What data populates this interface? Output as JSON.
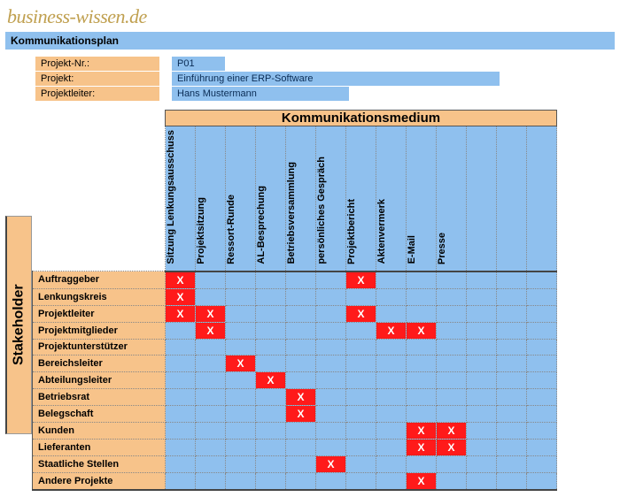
{
  "logo": "business-wissen.de",
  "title": "Kommunikationsplan",
  "meta": {
    "labels": {
      "projno": "Projekt-Nr.:",
      "proj": "Projekt:",
      "leader": "Projektleiter:"
    },
    "values": {
      "projno": "P01",
      "proj": "Einführung einer ERP-Software",
      "leader": "Hans Mustermann"
    },
    "widths": {
      "projno": 60,
      "proj": 370,
      "leader": 200
    }
  },
  "matrix": {
    "top_header": "Kommunikationsmedium",
    "side_header": "Stakeholder",
    "columns": [
      "Sitzung Lenkungsausschuss",
      "Projektsitzung",
      "Ressort-Runde",
      "AL-Besprechung",
      "Betriebsversammlung",
      "persönliches Gespräch",
      "Projektbericht",
      "Aktenvermerk",
      "E-Mail",
      "Presse",
      "",
      "",
      ""
    ],
    "rows": [
      "Auftraggeber",
      "Lenkungskreis",
      "Projektleiter",
      "Projektmitglieder",
      "Projektunterstützer",
      "Bereichsleiter",
      "Abteilungsleiter",
      "Betriebsrat",
      "Belegschaft",
      "Kunden",
      "Lieferanten",
      "Staatliche Stellen",
      "Andere Projekte"
    ],
    "marks": {
      "0": [
        0,
        6
      ],
      "1": [
        0
      ],
      "2": [
        0,
        1,
        6
      ],
      "3": [
        1,
        7,
        8
      ],
      "4": [],
      "5": [
        2
      ],
      "6": [
        3
      ],
      "7": [
        4
      ],
      "8": [
        4
      ],
      "9": [
        8,
        9
      ],
      "10": [
        8,
        9
      ],
      "11": [
        5
      ],
      "12": [
        8
      ]
    },
    "x_glyph": "X",
    "colors": {
      "header_bg": "#f7c38a",
      "cell_bg": "#8fc0ee",
      "mark_bg": "#ff1a1a",
      "mark_fg": "#ffffff"
    }
  }
}
